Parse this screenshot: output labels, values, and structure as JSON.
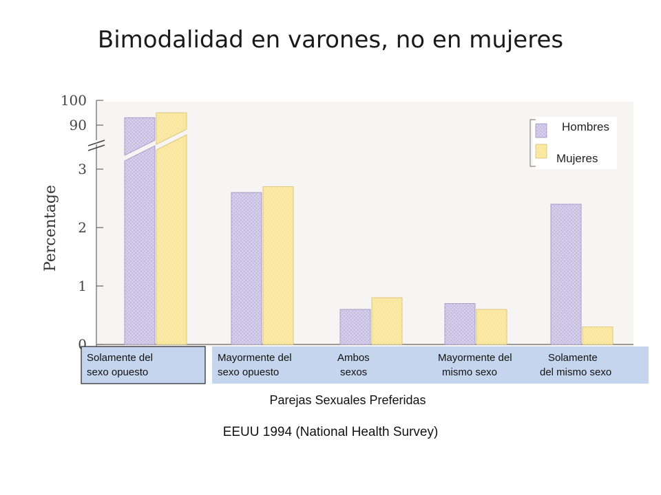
{
  "title": "Bimodalidad en varones, no en mujeres",
  "xlabel": "Parejas Sexuales Preferidas",
  "source": "EEUU 1994 (National Health Survey)",
  "colors": {
    "men": "#d9d3ec",
    "women": "#fbe9a6",
    "category_band": "#c6d5ee"
  },
  "chart_data": {
    "type": "bar",
    "ylabel": "Percentage",
    "y_axis_break": {
      "lower": [
        0,
        3.4
      ],
      "upper": [
        88,
        100
      ]
    },
    "yticks": [
      "0",
      "1",
      "2",
      "3",
      "90",
      "100"
    ],
    "legend_position": "top-right",
    "categories": [
      [
        "Solamente del",
        "sexo opuesto"
      ],
      [
        "Mayormente del",
        "sexo opuesto"
      ],
      [
        "Ambos",
        "sexos"
      ],
      [
        "Mayormente del",
        "mismo sexo"
      ],
      [
        "Solamente",
        "del mismo sexo"
      ]
    ],
    "series": [
      {
        "name": "Hombres",
        "values": [
          93,
          2.6,
          0.6,
          0.7,
          2.4
        ]
      },
      {
        "name": "Mujeres",
        "values": [
          95,
          2.7,
          0.8,
          0.6,
          0.3
        ]
      }
    ]
  }
}
